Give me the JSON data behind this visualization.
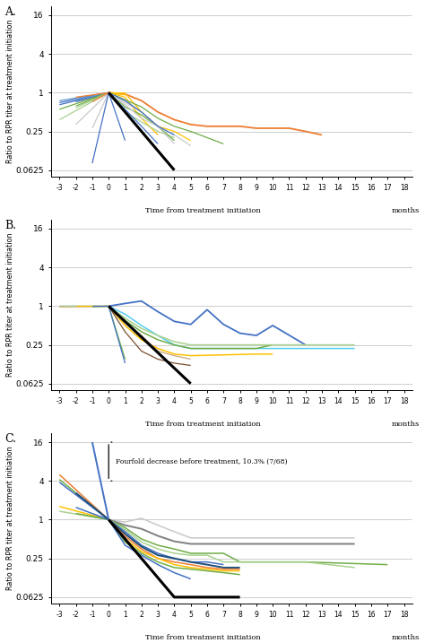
{
  "panel_A_label": "A.",
  "panel_B_label": "B.",
  "panel_C_label": "C.",
  "ylabel": "Ratio to RPR titer at treatment initiation",
  "xlabel": "Time from treatment initiation",
  "xlabel_suffix": "months",
  "yticks": [
    0.0625,
    0.25,
    1,
    4,
    16
  ],
  "ytick_labels": [
    "0.0625",
    "0.25",
    "1",
    "4",
    "16"
  ],
  "xticks": [
    -3,
    -2,
    -1,
    0,
    1,
    2,
    3,
    4,
    5,
    6,
    7,
    8,
    9,
    10,
    11,
    12,
    13,
    14,
    15,
    16,
    17,
    18
  ],
  "annotation_C": "Fourfold decrease before treatment, 10.3% (7/68)",
  "panel_A_lines": [
    {
      "x": [
        -3,
        0
      ],
      "y": [
        0.75,
        1
      ],
      "color": "#6699CC",
      "lw": 0.9
    },
    {
      "x": [
        -3,
        0
      ],
      "y": [
        0.7,
        1
      ],
      "color": "#4472C4",
      "lw": 0.9
    },
    {
      "x": [
        -3,
        0
      ],
      "y": [
        0.65,
        1
      ],
      "color": "#4472C4",
      "lw": 0.9
    },
    {
      "x": [
        -2,
        0
      ],
      "y": [
        0.72,
        1
      ],
      "color": "#4472C4",
      "lw": 0.9
    },
    {
      "x": [
        -2,
        0
      ],
      "y": [
        0.78,
        1
      ],
      "color": "#6699CC",
      "lw": 0.9
    },
    {
      "x": [
        -1,
        0
      ],
      "y": [
        0.82,
        1
      ],
      "color": "#4472C4",
      "lw": 0.9
    },
    {
      "x": [
        -3,
        0
      ],
      "y": [
        0.55,
        1
      ],
      "color": "#70AD47",
      "lw": 0.9
    },
    {
      "x": [
        -2,
        0
      ],
      "y": [
        0.62,
        1
      ],
      "color": "#70AD47",
      "lw": 0.9
    },
    {
      "x": [
        -2,
        0
      ],
      "y": [
        0.58,
        1
      ],
      "color": "#A9D18E",
      "lw": 0.9
    },
    {
      "x": [
        -3,
        0
      ],
      "y": [
        0.38,
        1
      ],
      "color": "#A9D18E",
      "lw": 0.9
    },
    {
      "x": [
        -2,
        0
      ],
      "y": [
        0.32,
        1
      ],
      "color": "#C9C9C9",
      "lw": 0.9
    },
    {
      "x": [
        -1,
        0
      ],
      "y": [
        0.28,
        1
      ],
      "color": "#C9C9C9",
      "lw": 0.9
    },
    {
      "x": [
        -2,
        0
      ],
      "y": [
        0.85,
        1
      ],
      "color": "#ED7D31",
      "lw": 0.9
    },
    {
      "x": [
        -1,
        0
      ],
      "y": [
        0.72,
        1
      ],
      "color": "#ED7D31",
      "lw": 0.9
    },
    {
      "x": [
        -1,
        0
      ],
      "y": [
        0.08,
        1
      ],
      "color": "#4472C4",
      "lw": 0.9
    },
    {
      "x": [
        0,
        1,
        2,
        3,
        4,
        5,
        6,
        8,
        9,
        11,
        12,
        13
      ],
      "y": [
        1,
        0.95,
        0.75,
        0.5,
        0.38,
        0.32,
        0.3,
        0.3,
        0.28,
        0.28,
        0.25,
        0.22
      ],
      "color": "#ED7D31",
      "lw": 1.3
    },
    {
      "x": [
        0,
        1
      ],
      "y": [
        1,
        0.92
      ],
      "color": "#FFC000",
      "lw": 0.9
    },
    {
      "x": [
        0,
        1,
        2,
        3,
        4,
        5
      ],
      "y": [
        1,
        0.98,
        0.5,
        0.3,
        0.25,
        0.18
      ],
      "color": "#FFC000",
      "lw": 0.9
    },
    {
      "x": [
        0,
        1,
        2,
        3
      ],
      "y": [
        1,
        0.85,
        0.4,
        0.22
      ],
      "color": "#FFC000",
      "lw": 0.9
    },
    {
      "x": [
        0,
        1,
        2,
        3,
        4
      ],
      "y": [
        1,
        0.5,
        0.35,
        0.25,
        0.2
      ],
      "color": "#A9D18E",
      "lw": 0.9
    },
    {
      "x": [
        0,
        1,
        2,
        3,
        4
      ],
      "y": [
        1,
        0.6,
        0.45,
        0.3,
        0.18
      ],
      "color": "#70AD47",
      "lw": 0.9
    },
    {
      "x": [
        0,
        2,
        3,
        4,
        5,
        6,
        7
      ],
      "y": [
        1,
        0.6,
        0.4,
        0.3,
        0.25,
        0.2,
        0.16
      ],
      "color": "#70AD47",
      "lw": 0.9
    },
    {
      "x": [
        0,
        1,
        2,
        3,
        4
      ],
      "y": [
        1,
        0.7,
        0.5,
        0.3,
        0.16
      ],
      "color": "#C9C9C9",
      "lw": 0.9
    },
    {
      "x": [
        0,
        1,
        2,
        3,
        4,
        5
      ],
      "y": [
        1,
        0.65,
        0.4,
        0.3,
        0.22,
        0.15
      ],
      "color": "#C9C9C9",
      "lw": 0.9
    },
    {
      "x": [
        0,
        1,
        2,
        3
      ],
      "y": [
        1,
        0.55,
        0.3,
        0.16
      ],
      "color": "#4472C4",
      "lw": 0.9
    },
    {
      "x": [
        0,
        1
      ],
      "y": [
        1,
        0.18
      ],
      "color": "#4472C4",
      "lw": 0.9
    },
    {
      "x": [
        0,
        1,
        2,
        3,
        4
      ],
      "y": [
        1,
        0.75,
        0.5,
        0.3,
        0.22
      ],
      "color": "#4472C4",
      "lw": 0.9
    },
    {
      "x": [
        0,
        4
      ],
      "y": [
        1,
        0.0625
      ],
      "color": "#000000",
      "lw": 2.2
    }
  ],
  "panel_B_lines": [
    {
      "x": [
        -3,
        0
      ],
      "y": [
        1.0,
        1
      ],
      "color": "#4472C4",
      "lw": 0.9
    },
    {
      "x": [
        -3,
        0
      ],
      "y": [
        1.0,
        1
      ],
      "color": "#70AD47",
      "lw": 0.9
    },
    {
      "x": [
        -3,
        0
      ],
      "y": [
        0.98,
        1
      ],
      "color": "#ED7D31",
      "lw": 0.9
    },
    {
      "x": [
        -3,
        0
      ],
      "y": [
        1.0,
        1
      ],
      "color": "#A9D18E",
      "lw": 0.9
    },
    {
      "x": [
        -2,
        0
      ],
      "y": [
        1.0,
        1
      ],
      "color": "#FFC000",
      "lw": 0.9
    },
    {
      "x": [
        -1,
        0
      ],
      "y": [
        0.98,
        1
      ],
      "color": "#70AD47",
      "lw": 0.9
    },
    {
      "x": [
        -1,
        0
      ],
      "y": [
        1.0,
        1
      ],
      "color": "#4472C4",
      "lw": 0.9
    },
    {
      "x": [
        0,
        1,
        2,
        3,
        4,
        5,
        6,
        7,
        8,
        9,
        10,
        12
      ],
      "y": [
        1,
        1.1,
        1.2,
        0.82,
        0.58,
        0.52,
        0.88,
        0.52,
        0.38,
        0.35,
        0.5,
        0.25
      ],
      "color": "#4472C4",
      "lw": 1.3
    },
    {
      "x": [
        0,
        1,
        2,
        3,
        4,
        5,
        6,
        7,
        8,
        9,
        10,
        15
      ],
      "y": [
        1,
        0.75,
        0.5,
        0.35,
        0.25,
        0.22,
        0.22,
        0.22,
        0.22,
        0.22,
        0.22,
        0.22
      ],
      "color": "#56CCF2",
      "lw": 1.1
    },
    {
      "x": [
        0,
        1,
        2,
        3,
        4,
        5,
        6,
        9,
        10
      ],
      "y": [
        1,
        0.6,
        0.4,
        0.3,
        0.25,
        0.22,
        0.22,
        0.22,
        0.25
      ],
      "color": "#70AD47",
      "lw": 1.1
    },
    {
      "x": [
        0,
        1,
        2,
        3,
        4,
        5,
        6,
        9,
        10,
        15
      ],
      "y": [
        1,
        0.65,
        0.45,
        0.35,
        0.28,
        0.25,
        0.25,
        0.25,
        0.25,
        0.25
      ],
      "color": "#A9D18E",
      "lw": 1.1
    },
    {
      "x": [
        0,
        1,
        2,
        3,
        4,
        5,
        9,
        10
      ],
      "y": [
        1,
        0.5,
        0.3,
        0.22,
        0.18,
        0.17,
        0.18,
        0.18
      ],
      "color": "#FFC000",
      "lw": 1.1
    },
    {
      "x": [
        0,
        1,
        2,
        3,
        4,
        5
      ],
      "y": [
        1,
        0.55,
        0.35,
        0.2,
        0.17,
        0.15
      ],
      "color": "#C8A882",
      "lw": 0.9
    },
    {
      "x": [
        0,
        1,
        2,
        3,
        4,
        5
      ],
      "y": [
        1,
        0.4,
        0.2,
        0.15,
        0.13,
        0.12
      ],
      "color": "#7B4F2E",
      "lw": 0.9
    },
    {
      "x": [
        0,
        1
      ],
      "y": [
        1,
        0.15
      ],
      "color": "#70AD47",
      "lw": 0.9
    },
    {
      "x": [
        0,
        1
      ],
      "y": [
        1,
        0.13
      ],
      "color": "#4472C4",
      "lw": 0.9
    },
    {
      "x": [
        0,
        5
      ],
      "y": [
        1,
        0.0625
      ],
      "color": "#000000",
      "lw": 2.2
    }
  ],
  "panel_C_lines": [
    {
      "x": [
        -3,
        0
      ],
      "y": [
        5.0,
        1
      ],
      "color": "#ED7D31",
      "lw": 1.1
    },
    {
      "x": [
        -3,
        0
      ],
      "y": [
        4.2,
        1
      ],
      "color": "#70AD47",
      "lw": 1.1
    },
    {
      "x": [
        -3,
        0
      ],
      "y": [
        3.8,
        1
      ],
      "color": "#4472C4",
      "lw": 1.1
    },
    {
      "x": [
        -3,
        0
      ],
      "y": [
        1.6,
        1
      ],
      "color": "#FFC000",
      "lw": 1.1
    },
    {
      "x": [
        -3,
        0
      ],
      "y": [
        1.35,
        1
      ],
      "color": "#A9D18E",
      "lw": 1.1
    },
    {
      "x": [
        -2,
        0
      ],
      "y": [
        1.25,
        1
      ],
      "color": "#70AD47",
      "lw": 1.1
    },
    {
      "x": [
        -2,
        0
      ],
      "y": [
        1.55,
        1
      ],
      "color": "#4472C4",
      "lw": 1.1
    },
    {
      "x": [
        -2,
        0
      ],
      "y": [
        2.6,
        1
      ],
      "color": "#1F4E79",
      "lw": 1.4
    },
    {
      "x": [
        -1,
        0
      ],
      "y": [
        16,
        1
      ],
      "color": "#4472C4",
      "lw": 1.4
    },
    {
      "x": [
        0,
        1,
        2,
        3,
        4,
        5,
        6,
        7,
        8,
        10,
        12,
        15
      ],
      "y": [
        1,
        0.92,
        1.05,
        0.82,
        0.65,
        0.52,
        0.52,
        0.52,
        0.52,
        0.52,
        0.52,
        0.52
      ],
      "color": "#C9C9C9",
      "lw": 1.1
    },
    {
      "x": [
        0,
        1,
        2,
        3,
        4,
        5,
        6,
        7,
        8,
        10,
        12,
        15
      ],
      "y": [
        1,
        0.82,
        0.72,
        0.56,
        0.46,
        0.42,
        0.42,
        0.42,
        0.42,
        0.42,
        0.42,
        0.42
      ],
      "color": "#808080",
      "lw": 1.4
    },
    {
      "x": [
        0,
        1,
        2,
        3,
        4,
        5,
        6,
        7,
        8,
        12,
        17
      ],
      "y": [
        1,
        0.75,
        0.5,
        0.4,
        0.35,
        0.3,
        0.3,
        0.3,
        0.22,
        0.22,
        0.2
      ],
      "color": "#70AD47",
      "lw": 1.1
    },
    {
      "x": [
        0,
        1,
        2,
        3,
        4,
        5,
        6,
        7,
        8,
        12,
        15
      ],
      "y": [
        1,
        0.7,
        0.45,
        0.35,
        0.3,
        0.28,
        0.28,
        0.22,
        0.22,
        0.22,
        0.18
      ],
      "color": "#A9D18E",
      "lw": 1.1
    },
    {
      "x": [
        0,
        1,
        2,
        3,
        4,
        5,
        6,
        7
      ],
      "y": [
        1,
        0.65,
        0.4,
        0.3,
        0.25,
        0.22,
        0.22,
        0.2
      ],
      "color": "#4472C4",
      "lw": 1.1
    },
    {
      "x": [
        0,
        1,
        2,
        3,
        4,
        5,
        6,
        7,
        8
      ],
      "y": [
        1,
        0.6,
        0.38,
        0.28,
        0.25,
        0.22,
        0.2,
        0.18,
        0.18
      ],
      "color": "#1F4E79",
      "lw": 1.4
    },
    {
      "x": [
        0,
        1,
        2,
        3,
        4,
        5,
        6,
        7,
        8
      ],
      "y": [
        1,
        0.55,
        0.35,
        0.25,
        0.22,
        0.2,
        0.18,
        0.17,
        0.17
      ],
      "color": "#ED7D31",
      "lw": 1.1
    },
    {
      "x": [
        0,
        1,
        2,
        3,
        4,
        5,
        6,
        7,
        8
      ],
      "y": [
        1,
        0.5,
        0.32,
        0.25,
        0.2,
        0.18,
        0.17,
        0.16,
        0.16
      ],
      "color": "#FFC000",
      "lw": 1.1
    },
    {
      "x": [
        0,
        1,
        2,
        3,
        4,
        5,
        6,
        7,
        8
      ],
      "y": [
        1,
        0.45,
        0.3,
        0.22,
        0.18,
        0.17,
        0.16,
        0.15,
        0.14
      ],
      "color": "#70AD47",
      "lw": 1.1
    },
    {
      "x": [
        0,
        1,
        2,
        3,
        4,
        5
      ],
      "y": [
        1,
        0.4,
        0.28,
        0.2,
        0.15,
        0.12
      ],
      "color": "#4472C4",
      "lw": 1.1
    },
    {
      "x": [
        0,
        4,
        5,
        8
      ],
      "y": [
        1,
        0.0625,
        0.0625,
        0.0625
      ],
      "color": "#000000",
      "lw": 2.2
    }
  ],
  "brace_C_x": 0,
  "brace_C_y_lo": 4,
  "brace_C_y_hi": 16
}
